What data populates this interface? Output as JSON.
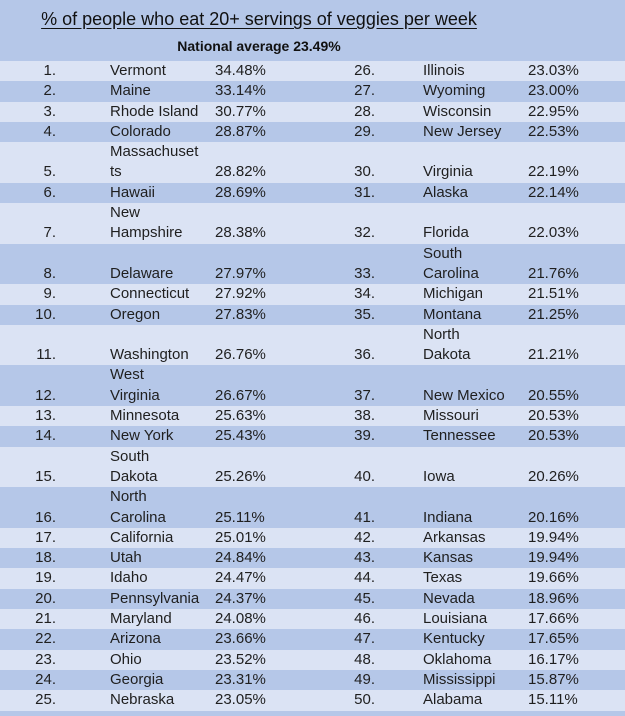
{
  "title": "% of people who eat 20+ servings of veggies per week",
  "subtitle": "National average 23.49%",
  "colors": {
    "row_light": "#dbe3f4",
    "row_dark": "#b5c7e8",
    "text": "#1f1f1f"
  },
  "chart_data": {
    "type": "table",
    "title": "% of people who eat 20+ servings of veggies per week",
    "subtitle": "National average 23.49%",
    "national_average": 23.49,
    "columns": [
      "rank",
      "state",
      "percent"
    ],
    "rows": [
      [
        1,
        "Vermont",
        34.48
      ],
      [
        2,
        "Maine",
        33.14
      ],
      [
        3,
        "Rhode Island",
        30.77
      ],
      [
        4,
        "Colorado",
        28.87
      ],
      [
        5,
        "Massachusetts",
        28.82
      ],
      [
        6,
        "Hawaii",
        28.69
      ],
      [
        7,
        "New Hampshire",
        28.38
      ],
      [
        8,
        "Delaware",
        27.97
      ],
      [
        9,
        "Connecticut",
        27.92
      ],
      [
        10,
        "Oregon",
        27.83
      ],
      [
        11,
        "Washington",
        26.76
      ],
      [
        12,
        "West Virginia",
        26.67
      ],
      [
        13,
        "Minnesota",
        25.63
      ],
      [
        14,
        "New York",
        25.43
      ],
      [
        15,
        "South Dakota",
        25.26
      ],
      [
        16,
        "North Carolina",
        25.11
      ],
      [
        17,
        "California",
        25.01
      ],
      [
        18,
        "Utah",
        24.84
      ],
      [
        19,
        "Idaho",
        24.47
      ],
      [
        20,
        "Pennsylvania",
        24.37
      ],
      [
        21,
        "Maryland",
        24.08
      ],
      [
        22,
        "Arizona",
        23.66
      ],
      [
        23,
        "Ohio",
        23.52
      ],
      [
        24,
        "Georgia",
        23.31
      ],
      [
        25,
        "Nebraska",
        23.05
      ],
      [
        26,
        "Illinois",
        23.03
      ],
      [
        27,
        "Wyoming",
        23.0
      ],
      [
        28,
        "Wisconsin",
        22.95
      ],
      [
        29,
        "New Jersey",
        22.53
      ],
      [
        30,
        "Virginia",
        22.19
      ],
      [
        31,
        "Alaska",
        22.14
      ],
      [
        32,
        "Florida",
        22.03
      ],
      [
        33,
        "South Carolina",
        21.76
      ],
      [
        34,
        "Michigan",
        21.51
      ],
      [
        35,
        "Montana",
        21.25
      ],
      [
        36,
        "North Dakota",
        21.21
      ],
      [
        37,
        "New Mexico",
        20.55
      ],
      [
        38,
        "Missouri",
        20.53
      ],
      [
        39,
        "Tennessee",
        20.53
      ],
      [
        40,
        "Iowa",
        20.26
      ],
      [
        41,
        "Indiana",
        20.16
      ],
      [
        42,
        "Arkansas",
        19.94
      ],
      [
        43,
        "Kansas",
        19.94
      ],
      [
        44,
        "Texas",
        19.66
      ],
      [
        45,
        "Nevada",
        18.96
      ],
      [
        46,
        "Louisiana",
        17.66
      ],
      [
        47,
        "Kentucky",
        17.65
      ],
      [
        48,
        "Oklahoma",
        16.17
      ],
      [
        49,
        "Mississippi",
        15.87
      ],
      [
        50,
        "Alabama",
        15.11
      ]
    ]
  },
  "table": {
    "rows": [
      {
        "l_rank": "1.",
        "l_state": "Vermont",
        "l_pct": "34.48%",
        "r_rank": "26.",
        "r_state": "Illinois",
        "r_pct": "23.03%",
        "tall": false
      },
      {
        "l_rank": "2.",
        "l_state": "Maine",
        "l_pct": "33.14%",
        "r_rank": "27.",
        "r_state": "Wyoming",
        "r_pct": "23.00%",
        "tall": false
      },
      {
        "l_rank": "3.",
        "l_state": "Rhode Island",
        "l_pct": "30.77%",
        "r_rank": "28.",
        "r_state": "Wisconsin",
        "r_pct": "22.95%",
        "tall": false
      },
      {
        "l_rank": "4.",
        "l_state": "Colorado",
        "l_pct": "28.87%",
        "r_rank": "29.",
        "r_state": "New Jersey",
        "r_pct": "22.53%",
        "tall": false
      },
      {
        "l_rank": "5.",
        "l_state": "Massachuset\nts",
        "l_pct": "28.82%",
        "r_rank": "30.",
        "r_state": "Virginia",
        "r_pct": "22.19%",
        "tall": true
      },
      {
        "l_rank": "6.",
        "l_state": "Hawaii",
        "l_pct": "28.69%",
        "r_rank": "31.",
        "r_state": "Alaska",
        "r_pct": "22.14%",
        "tall": false
      },
      {
        "l_rank": "7.",
        "l_state": "New\nHampshire",
        "l_pct": "28.38%",
        "r_rank": "32.",
        "r_state": "Florida",
        "r_pct": "22.03%",
        "tall": true
      },
      {
        "l_rank": "8.",
        "l_state": "Delaware",
        "l_pct": "27.97%",
        "r_rank": "33.",
        "r_state": "South\nCarolina",
        "r_pct": "21.76%",
        "tall": true
      },
      {
        "l_rank": "9.",
        "l_state": "Connecticut",
        "l_pct": "27.92%",
        "r_rank": "34.",
        "r_state": "Michigan",
        "r_pct": "21.51%",
        "tall": false
      },
      {
        "l_rank": "10.",
        "l_state": "Oregon",
        "l_pct": "27.83%",
        "r_rank": "35.",
        "r_state": "Montana",
        "r_pct": "21.25%",
        "tall": false
      },
      {
        "l_rank": "11.",
        "l_state": "Washington",
        "l_pct": "26.76%",
        "r_rank": "36.",
        "r_state": "North\nDakota",
        "r_pct": "21.21%",
        "tall": true
      },
      {
        "l_rank": "12.",
        "l_state": "West\nVirginia",
        "l_pct": "26.67%",
        "r_rank": "37.",
        "r_state": "New Mexico",
        "r_pct": "20.55%",
        "tall": true
      },
      {
        "l_rank": "13.",
        "l_state": "Minnesota",
        "l_pct": "25.63%",
        "r_rank": "38.",
        "r_state": "Missouri",
        "r_pct": "20.53%",
        "tall": false
      },
      {
        "l_rank": "14.",
        "l_state": "New York",
        "l_pct": "25.43%",
        "r_rank": "39.",
        "r_state": "Tennessee",
        "r_pct": "20.53%",
        "tall": false
      },
      {
        "l_rank": "15.",
        "l_state": "South\nDakota",
        "l_pct": "25.26%",
        "r_rank": "40.",
        "r_state": "Iowa",
        "r_pct": "20.26%",
        "tall": true
      },
      {
        "l_rank": "16.",
        "l_state": "North\nCarolina",
        "l_pct": "25.11%",
        "r_rank": "41.",
        "r_state": "Indiana",
        "r_pct": "20.16%",
        "tall": true
      },
      {
        "l_rank": "17.",
        "l_state": "California",
        "l_pct": "25.01%",
        "r_rank": "42.",
        "r_state": "Arkansas",
        "r_pct": "19.94%",
        "tall": false
      },
      {
        "l_rank": "18.",
        "l_state": "Utah",
        "l_pct": "24.84%",
        "r_rank": "43.",
        "r_state": "Kansas",
        "r_pct": "19.94%",
        "tall": false
      },
      {
        "l_rank": "19.",
        "l_state": "Idaho",
        "l_pct": "24.47%",
        "r_rank": "44.",
        "r_state": "Texas",
        "r_pct": "19.66%",
        "tall": false
      },
      {
        "l_rank": "20.",
        "l_state": "Pennsylvania",
        "l_pct": "24.37%",
        "r_rank": "45.",
        "r_state": "Nevada",
        "r_pct": "18.96%",
        "tall": false
      },
      {
        "l_rank": "21.",
        "l_state": "Maryland",
        "l_pct": "24.08%",
        "r_rank": "46.",
        "r_state": "Louisiana",
        "r_pct": "17.66%",
        "tall": false
      },
      {
        "l_rank": "22.",
        "l_state": "Arizona",
        "l_pct": "23.66%",
        "r_rank": "47.",
        "r_state": "Kentucky",
        "r_pct": "17.65%",
        "tall": false
      },
      {
        "l_rank": "23.",
        "l_state": "Ohio",
        "l_pct": "23.52%",
        "r_rank": "48.",
        "r_state": "Oklahoma",
        "r_pct": "16.17%",
        "tall": false
      },
      {
        "l_rank": "24.",
        "l_state": "Georgia",
        "l_pct": "23.31%",
        "r_rank": "49.",
        "r_state": "Mississippi",
        "r_pct": "15.87%",
        "tall": false
      },
      {
        "l_rank": "25.",
        "l_state": "Nebraska",
        "l_pct": "23.05%",
        "r_rank": "50.",
        "r_state": "Alabama",
        "r_pct": "15.11%",
        "tall": false
      }
    ]
  }
}
